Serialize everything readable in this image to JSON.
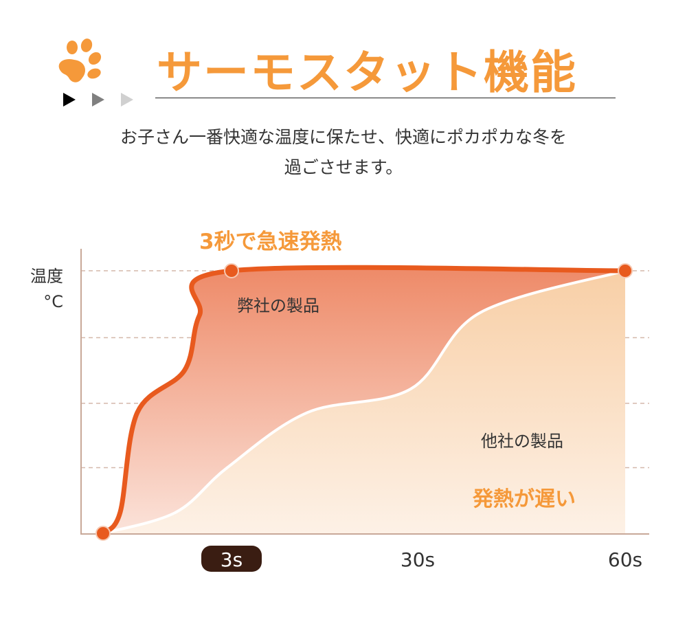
{
  "header": {
    "title": "サーモスタット機能",
    "subtitle_line1": "お子さん一番快適な温度に保たせ、快適にポカポカな冬を",
    "subtitle_line2": "過ごさせます。"
  },
  "colors": {
    "accent": "#f5993a",
    "ours": "#e85a1e",
    "others_fill": "#f9d9b8",
    "axis": "#c8a898",
    "tick_badge": "#3a1d12"
  },
  "chart_data": {
    "type": "area",
    "title": "3秒で急速発熱",
    "ylabel": "温度",
    "yunit": "°C",
    "x_ticks": [
      {
        "value": 3,
        "label": "3s",
        "highlight": true
      },
      {
        "value": 30,
        "label": "30s"
      },
      {
        "value": 60,
        "label": "60s"
      }
    ],
    "xlim": [
      0,
      60
    ],
    "ylim": [
      0,
      100
    ],
    "grid": true,
    "series": [
      {
        "name": "弊社の製品",
        "points": [
          [
            0,
            0
          ],
          [
            0.4,
            8
          ],
          [
            0.8,
            46
          ],
          [
            1.9,
            62
          ],
          [
            2.25,
            83
          ],
          [
            3,
            100
          ],
          [
            60,
            100
          ]
        ]
      },
      {
        "name": "他社の製品",
        "points": [
          [
            0,
            0
          ],
          [
            1.7,
            8
          ],
          [
            2.9,
            25
          ],
          [
            14,
            46
          ],
          [
            29,
            55
          ],
          [
            39,
            84
          ],
          [
            60,
            100
          ]
        ]
      }
    ],
    "annotations": {
      "slow": "発熱が遅い"
    }
  }
}
